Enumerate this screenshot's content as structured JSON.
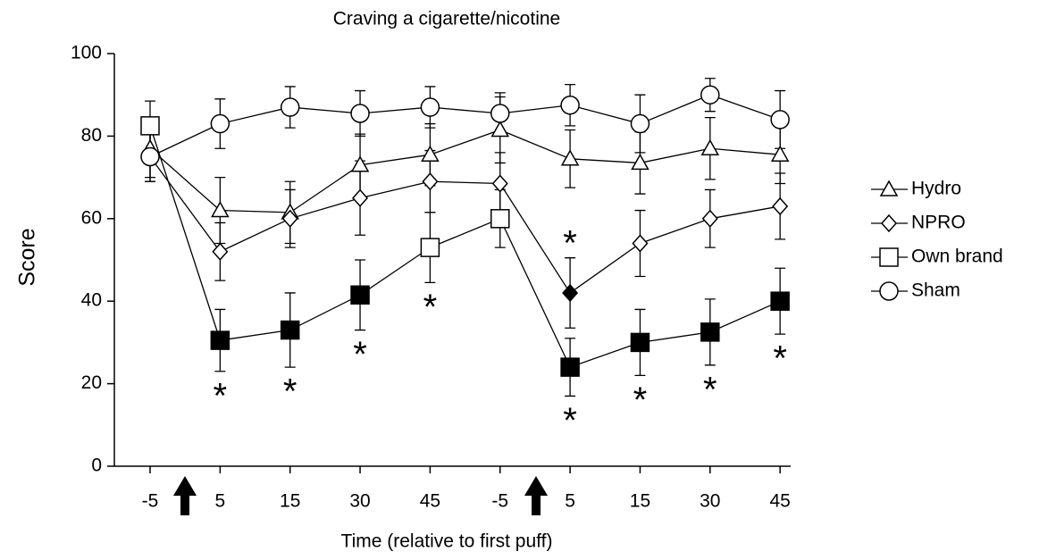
{
  "chart_data": {
    "type": "line",
    "title": "Craving a cigarette/nicotine",
    "x_label": "Time (relative to first puff)",
    "y_label": "Score",
    "categories": [
      "-5",
      "5",
      "15",
      "30",
      "45",
      "-5",
      "5",
      "15",
      "30",
      "45"
    ],
    "ylim": [
      0,
      100
    ],
    "yticks": [
      0,
      20,
      40,
      60,
      80,
      100
    ],
    "significance_marker": "*",
    "series": [
      {
        "name": "Hydro",
        "marker": "triangle",
        "color": "#000000",
        "values": [
          77,
          62,
          61.5,
          73,
          75.5,
          81.5,
          74.5,
          73.5,
          77,
          75.5
        ],
        "errors": [
          7,
          8,
          7.5,
          7.5,
          7.5,
          8,
          7,
          7.5,
          7.5,
          7
        ],
        "filled": [
          false,
          false,
          false,
          false,
          false,
          false,
          false,
          false,
          false,
          false
        ],
        "asterisk": [
          null,
          null,
          null,
          null,
          null,
          null,
          null,
          null,
          null,
          null
        ]
      },
      {
        "name": "NPRO",
        "marker": "diamond",
        "color": "#000000",
        "values": [
          75,
          52,
          60,
          65,
          69,
          68.5,
          42,
          54,
          60,
          63
        ],
        "errors": [
          6,
          7,
          7,
          9,
          7.5,
          7.5,
          8.5,
          8,
          7,
          8
        ],
        "filled": [
          false,
          false,
          false,
          false,
          false,
          false,
          true,
          false,
          false,
          false
        ],
        "asterisk": [
          null,
          null,
          null,
          null,
          null,
          null,
          "above",
          null,
          null,
          null
        ]
      },
      {
        "name": "Own brand",
        "marker": "square",
        "color": "#000000",
        "values": [
          82.5,
          30.5,
          33,
          41.5,
          53,
          60,
          24,
          30,
          32.5,
          40
        ],
        "errors": [
          6,
          7.5,
          9,
          8.5,
          8.5,
          7,
          7,
          8,
          8,
          8
        ],
        "filled": [
          false,
          true,
          true,
          true,
          false,
          false,
          true,
          true,
          true,
          true
        ],
        "asterisk": [
          null,
          "below",
          "below",
          "below",
          "below",
          null,
          "below",
          "below",
          "below",
          "below"
        ]
      },
      {
        "name": "Sham",
        "marker": "circle",
        "color": "#000000",
        "values": [
          75,
          83,
          87,
          85.5,
          87,
          85.5,
          87.5,
          83,
          90,
          84
        ],
        "errors": [
          6,
          6,
          5,
          5.5,
          5,
          5,
          5,
          7,
          4,
          7
        ],
        "filled": [
          false,
          false,
          false,
          false,
          false,
          false,
          false,
          false,
          false,
          false
        ],
        "asterisk": [
          null,
          null,
          null,
          null,
          null,
          null,
          null,
          null,
          null,
          null
        ]
      }
    ]
  }
}
